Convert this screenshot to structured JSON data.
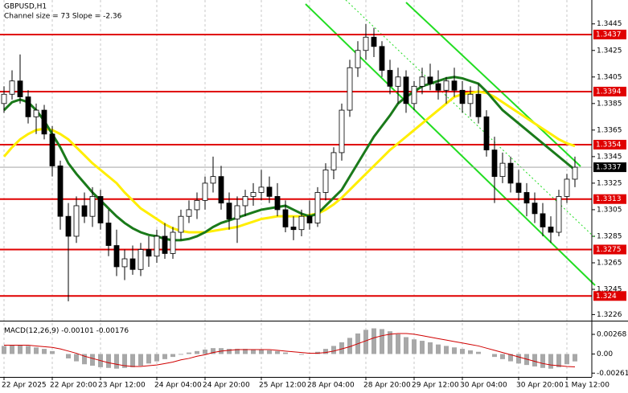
{
  "chart_data": {
    "type": "candlestick",
    "title": "GBPUSD,H1",
    "subtitle": "Channel size = 73 Slope = -2.36",
    "categories": [
      "22 Apr 2025",
      null,
      null,
      null,
      null,
      null,
      "22 Apr 20:00",
      null,
      null,
      null,
      null,
      null,
      "23 Apr 12:00",
      null,
      null,
      null,
      null,
      null,
      null,
      "24 Apr 04:00",
      null,
      null,
      null,
      null,
      null,
      "24 Apr 20:00",
      null,
      null,
      null,
      null,
      null,
      null,
      "25 Apr 12:00",
      null,
      null,
      null,
      null,
      null,
      "28 Apr 04:00",
      null,
      null,
      null,
      null,
      null,
      null,
      "28 Apr 20:00",
      null,
      null,
      null,
      null,
      null,
      "29 Apr 12:00",
      null,
      null,
      null,
      null,
      null,
      "30 Apr 04:00",
      null,
      null,
      null,
      null,
      null,
      null,
      "30 Apr 20:00",
      null,
      null,
      null,
      null,
      null,
      "1 May 12:00",
      null
    ],
    "candles": [
      [
        1.3385,
        1.3398,
        1.3378,
        1.3392
      ],
      [
        1.3392,
        1.341,
        1.3388,
        1.3402
      ],
      [
        1.3402,
        1.3422,
        1.3385,
        1.339
      ],
      [
        1.339,
        1.3395,
        1.337,
        1.3375
      ],
      [
        1.3375,
        1.3385,
        1.3362,
        1.338
      ],
      [
        1.338,
        1.3384,
        1.3358,
        1.3362
      ],
      [
        1.3362,
        1.3368,
        1.333,
        1.3338
      ],
      [
        1.3338,
        1.3342,
        1.329,
        1.33
      ],
      [
        1.33,
        1.331,
        1.3236,
        1.3285
      ],
      [
        1.3285,
        1.3315,
        1.328,
        1.3308
      ],
      [
        1.3308,
        1.3318,
        1.3295,
        1.33
      ],
      [
        1.33,
        1.3322,
        1.3292,
        1.3315
      ],
      [
        1.3315,
        1.332,
        1.329,
        1.3295
      ],
      [
        1.3295,
        1.3305,
        1.327,
        1.3278
      ],
      [
        1.3278,
        1.329,
        1.3255,
        1.3262
      ],
      [
        1.3262,
        1.3275,
        1.3252,
        1.3268
      ],
      [
        1.3268,
        1.3278,
        1.3256,
        1.326
      ],
      [
        1.326,
        1.328,
        1.3255,
        1.3275
      ],
      [
        1.3275,
        1.3285,
        1.3262,
        1.327
      ],
      [
        1.327,
        1.329,
        1.3265,
        1.3285
      ],
      [
        1.3285,
        1.3295,
        1.3268,
        1.3272
      ],
      [
        1.3272,
        1.3292,
        1.3268,
        1.3288
      ],
      [
        1.3288,
        1.3305,
        1.3282,
        1.33
      ],
      [
        1.33,
        1.3312,
        1.3295,
        1.3305
      ],
      [
        1.3305,
        1.3318,
        1.3298,
        1.3312
      ],
      [
        1.3312,
        1.333,
        1.3305,
        1.3325
      ],
      [
        1.3325,
        1.3345,
        1.3318,
        1.333
      ],
      [
        1.333,
        1.3338,
        1.3305,
        1.331
      ],
      [
        1.331,
        1.3318,
        1.329,
        1.3298
      ],
      [
        1.3298,
        1.3315,
        1.328,
        1.3308
      ],
      [
        1.3308,
        1.332,
        1.33,
        1.3315
      ],
      [
        1.3315,
        1.3325,
        1.3308,
        1.3318
      ],
      [
        1.3318,
        1.3335,
        1.3312,
        1.3322
      ],
      [
        1.3322,
        1.333,
        1.331,
        1.3315
      ],
      [
        1.3315,
        1.3325,
        1.33,
        1.3305
      ],
      [
        1.3305,
        1.3312,
        1.3288,
        1.3292
      ],
      [
        1.3292,
        1.33,
        1.3282,
        1.329
      ],
      [
        1.329,
        1.3305,
        1.3285,
        1.33
      ],
      [
        1.33,
        1.3312,
        1.329,
        1.3295
      ],
      [
        1.3295,
        1.3322,
        1.3292,
        1.3318
      ],
      [
        1.3318,
        1.334,
        1.3312,
        1.3335
      ],
      [
        1.3335,
        1.3352,
        1.3328,
        1.3348
      ],
      [
        1.3348,
        1.3385,
        1.3342,
        1.338
      ],
      [
        1.338,
        1.3418,
        1.3375,
        1.3412
      ],
      [
        1.3412,
        1.3432,
        1.3405,
        1.3425
      ],
      [
        1.3425,
        1.3445,
        1.3418,
        1.3435
      ],
      [
        1.3435,
        1.3442,
        1.342,
        1.3428
      ],
      [
        1.3428,
        1.3432,
        1.3405,
        1.341
      ],
      [
        1.341,
        1.3418,
        1.3392,
        1.3398
      ],
      [
        1.3398,
        1.3412,
        1.3385,
        1.3405
      ],
      [
        1.3405,
        1.341,
        1.3378,
        1.3385
      ],
      [
        1.3385,
        1.3402,
        1.338,
        1.3398
      ],
      [
        1.3398,
        1.3412,
        1.3392,
        1.3405
      ],
      [
        1.3405,
        1.3415,
        1.3395,
        1.34
      ],
      [
        1.34,
        1.341,
        1.3388,
        1.3395
      ],
      [
        1.3395,
        1.3405,
        1.3385,
        1.3402
      ],
      [
        1.3402,
        1.3412,
        1.339,
        1.3395
      ],
      [
        1.3395,
        1.3402,
        1.3378,
        1.3385
      ],
      [
        1.3385,
        1.3398,
        1.3375,
        1.3392
      ],
      [
        1.3392,
        1.34,
        1.337,
        1.3375
      ],
      [
        1.3375,
        1.338,
        1.3345,
        1.335
      ],
      [
        1.335,
        1.336,
        1.331,
        1.333
      ],
      [
        1.333,
        1.3348,
        1.3325,
        1.334
      ],
      [
        1.334,
        1.3345,
        1.3318,
        1.3325
      ],
      [
        1.3325,
        1.3335,
        1.3312,
        1.3318
      ],
      [
        1.3318,
        1.3325,
        1.33,
        1.331
      ],
      [
        1.331,
        1.3318,
        1.3295,
        1.3302
      ],
      [
        1.3302,
        1.331,
        1.3285,
        1.3292
      ],
      [
        1.3292,
        1.33,
        1.328,
        1.3288
      ],
      [
        1.3288,
        1.332,
        1.3285,
        1.3315
      ],
      [
        1.3315,
        1.3332,
        1.331,
        1.3328
      ],
      [
        1.3328,
        1.3345,
        1.3322,
        1.3337
      ]
    ],
    "series": [
      {
        "color": "#ffee00",
        "values": [
          1.3345,
          1.3352,
          1.3358,
          1.3362,
          1.3365,
          1.3366,
          1.3365,
          1.3362,
          1.3358,
          1.3352,
          1.3346,
          1.334,
          1.3335,
          1.333,
          1.3325,
          1.3318,
          1.3312,
          1.3306,
          1.3302,
          1.3298,
          1.3294,
          1.3291,
          1.3289,
          1.3288,
          1.3288,
          1.3288,
          1.3289,
          1.329,
          1.3291,
          1.3292,
          1.3294,
          1.3296,
          1.3298,
          1.3299,
          1.33,
          1.33,
          1.33,
          1.33,
          1.3301,
          1.3302,
          1.3305,
          1.3309,
          1.3314,
          1.332,
          1.3326,
          1.3332,
          1.3338,
          1.3344,
          1.335,
          1.3355,
          1.336,
          1.3365,
          1.337,
          1.3375,
          1.338,
          1.3385,
          1.339,
          1.3392,
          1.3393,
          1.3394,
          1.3393,
          1.339,
          1.3386,
          1.3382,
          1.3378,
          1.3374,
          1.337,
          1.3366,
          1.3362,
          1.3358,
          1.3355,
          1.3353
        ]
      },
      {
        "color": "#1a7a1a",
        "values": [
          1.338,
          1.3386,
          1.3388,
          1.3386,
          1.338,
          1.3372,
          1.3362,
          1.3352,
          1.334,
          1.3332,
          1.3325,
          1.3318,
          1.3312,
          1.3306,
          1.33,
          1.3295,
          1.3291,
          1.3288,
          1.3286,
          1.3285,
          1.3283,
          1.3282,
          1.3282,
          1.3283,
          1.3285,
          1.3288,
          1.3292,
          1.3295,
          1.3297,
          1.3299,
          1.3301,
          1.3303,
          1.3305,
          1.3306,
          1.3307,
          1.3308,
          1.3305,
          1.3302,
          1.33,
          1.3302,
          1.3308,
          1.3314,
          1.332,
          1.333,
          1.334,
          1.335,
          1.336,
          1.3368,
          1.3376,
          1.3385,
          1.339,
          1.3394,
          1.3398,
          1.34,
          1.3402,
          1.3404,
          1.3405,
          1.3404,
          1.3402,
          1.34,
          1.3394,
          1.3387,
          1.338,
          1.3375,
          1.337,
          1.3365,
          1.336,
          1.3355,
          1.335,
          1.3345,
          1.334,
          1.3335
        ]
      }
    ],
    "levels": {
      "color": "#e00000",
      "values": [
        1.3437,
        1.3394,
        1.3354,
        1.3313,
        1.3275,
        1.324
      ]
    },
    "current_price": 1.3337,
    "ylim": [
      1.3222,
      1.3463
    ],
    "yticks": [
      1.3445,
      1.3425,
      1.3405,
      1.3385,
      1.3365,
      1.3345,
      1.3325,
      1.3305,
      1.3285,
      1.3265,
      1.3245,
      1.3226
    ],
    "grid": true,
    "macd": {
      "title": "MACD(12,26,9)",
      "histogram": {
        "color": "#a8a8a8",
        "values": [
          0.0011,
          0.0012,
          0.0012,
          0.0011,
          0.0009,
          0.0007,
          0.0004,
          0.0,
          -0.0006,
          -0.001,
          -0.0014,
          -0.0016,
          -0.0018,
          -0.0019,
          -0.002,
          -0.0019,
          -0.0018,
          -0.0016,
          -0.0013,
          -0.001,
          -0.0007,
          -0.0004,
          -0.0001,
          0.0002,
          0.0004,
          0.0006,
          0.0008,
          0.0008,
          0.0007,
          0.0007,
          0.0007,
          0.0006,
          0.0006,
          0.0005,
          0.0004,
          0.0002,
          0.0,
          -0.0001,
          0.0,
          0.0003,
          0.0007,
          0.0011,
          0.0016,
          0.0022,
          0.0028,
          0.0033,
          0.0035,
          0.0034,
          0.0031,
          0.0027,
          0.0023,
          0.002,
          0.0018,
          0.0016,
          0.0013,
          0.0011,
          0.0009,
          0.0007,
          0.0005,
          0.0003,
          0.0,
          -0.0004,
          -0.0007,
          -0.001,
          -0.0013,
          -0.0015,
          -0.0017,
          -0.0019,
          -0.002,
          -0.0018,
          -0.0014,
          -0.00101
        ]
      },
      "signal": {
        "color": "#d00000",
        "values": [
          0.0012,
          0.0012,
          0.0012,
          0.0012,
          0.0011,
          0.001,
          0.0009,
          0.0007,
          0.0004,
          0.0001,
          -0.0003,
          -0.0006,
          -0.0009,
          -0.0012,
          -0.0014,
          -0.0016,
          -0.0017,
          -0.0017,
          -0.0016,
          -0.0015,
          -0.0013,
          -0.0011,
          -0.0008,
          -0.0006,
          -0.0003,
          -0.0001,
          0.0002,
          0.0004,
          0.0005,
          0.0006,
          0.0006,
          0.0006,
          0.0006,
          0.0006,
          0.0005,
          0.0004,
          0.0003,
          0.0002,
          0.0001,
          0.0001,
          0.0002,
          0.0004,
          0.0007,
          0.001,
          0.0014,
          0.0018,
          0.0022,
          0.0025,
          0.0027,
          0.0028,
          0.0028,
          0.0027,
          0.0025,
          0.0023,
          0.0021,
          0.0019,
          0.0017,
          0.0015,
          0.0013,
          0.0011,
          0.0008,
          0.0005,
          0.0002,
          -0.0001,
          -0.0004,
          -0.0007,
          -0.001,
          -0.0013,
          -0.0015,
          -0.0016,
          -0.0017,
          -0.00176
        ]
      },
      "ylim": [
        -0.0028,
        0.004
      ],
      "yticks": [
        0.00268,
        {
          "value": 0,
          "label": "0.00"
        },
        -0.00261
      ]
    }
  }
}
